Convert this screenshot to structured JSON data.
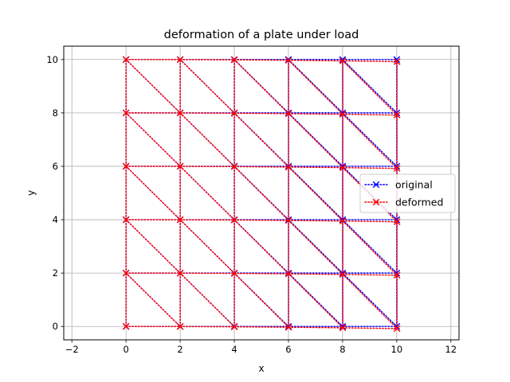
{
  "chart_data": {
    "type": "line",
    "title": "deformation of a plate under load",
    "xlabel": "x",
    "ylabel": "y",
    "xlim": [
      -2.3,
      12.3
    ],
    "ylim": [
      -0.5,
      10.5
    ],
    "xticks": [
      -2,
      0,
      2,
      4,
      6,
      8,
      10,
      12
    ],
    "yticks": [
      0,
      2,
      4,
      6,
      8,
      10
    ],
    "grid": true,
    "legend_position": "center-right",
    "mesh": {
      "node_x": [
        0,
        2,
        4,
        6,
        8,
        10
      ],
      "node_y": [
        0,
        2,
        4,
        6,
        8,
        10
      ],
      "elements": "triangular, diagonal from upper-left to lower-right in each cell"
    },
    "series": [
      {
        "name": "original",
        "color": "#0000ff",
        "marker": "x",
        "linestyle": "dotted",
        "max_displacement": 0
      },
      {
        "name": "deformed",
        "color": "#ff0000",
        "marker": "x",
        "linestyle": "dotted",
        "max_displacement": 0.08
      }
    ]
  }
}
